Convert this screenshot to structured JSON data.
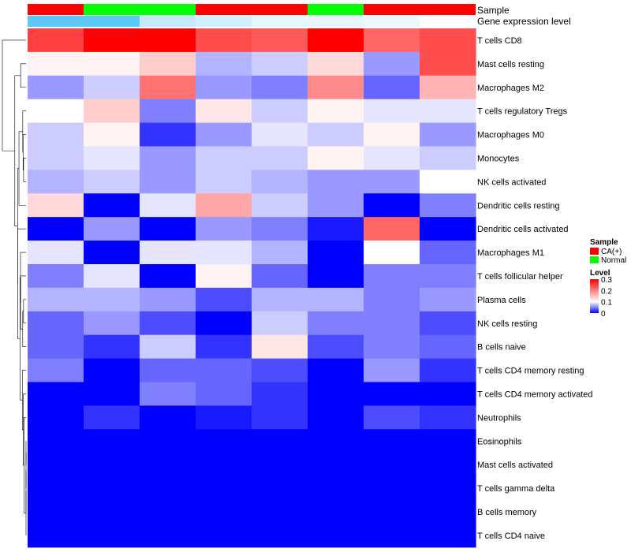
{
  "chart_data": {
    "type": "heatmap",
    "title": "",
    "annotation_labels": {
      "sample": "Sample",
      "expression": "Gene expression level"
    },
    "columns": [
      {
        "sample": "CA(+)",
        "expression": 0.32
      },
      {
        "sample": "Normal",
        "expression": 0.32
      },
      {
        "sample": "Normal",
        "expression": 0.12
      },
      {
        "sample": "CA(+)",
        "expression": 0.09
      },
      {
        "sample": "CA(+)",
        "expression": 0.05
      },
      {
        "sample": "Normal",
        "expression": 0.05
      },
      {
        "sample": "CA(+)",
        "expression": 0.04
      },
      {
        "sample": "CA(+)",
        "expression": 0.0
      }
    ],
    "rows": [
      "T cells CD8",
      "Mast cells resting",
      "Macrophages M2",
      "T cells regulatory  Tregs",
      "Macrophages M0",
      "Monocytes",
      "NK cells activated",
      "Dendritic cells resting",
      "Dendritic cells activated",
      "Macrophages M1",
      "T cells follicular helper",
      "Plasma cells",
      "NK cells resting",
      "B cells naive",
      "T cells CD4 memory resting",
      "T cells CD4 memory activated",
      "Neutrophils",
      "Eosinophils",
      "Mast cells activated",
      "T cells gamma delta",
      "B cells memory",
      "T cells CD4 naive"
    ],
    "values": [
      [
        0.25,
        0.3,
        0.3,
        0.24,
        0.23,
        0.3,
        0.22,
        0.24
      ],
      [
        0.11,
        0.11,
        0.14,
        0.07,
        0.08,
        0.13,
        0.06,
        0.24
      ],
      [
        0.06,
        0.08,
        0.21,
        0.06,
        0.05,
        0.19,
        0.04,
        0.16
      ],
      [
        0.1,
        0.14,
        0.05,
        0.12,
        0.08,
        0.11,
        0.09,
        0.09
      ],
      [
        0.08,
        0.11,
        0.02,
        0.06,
        0.09,
        0.08,
        0.11,
        0.06
      ],
      [
        0.08,
        0.09,
        0.06,
        0.08,
        0.08,
        0.11,
        0.09,
        0.08
      ],
      [
        0.07,
        0.08,
        0.06,
        0.08,
        0.07,
        0.06,
        0.06,
        0.1
      ],
      [
        0.13,
        0.0,
        0.09,
        0.17,
        0.08,
        0.06,
        0.0,
        0.05
      ],
      [
        0.0,
        0.06,
        0.0,
        0.06,
        0.05,
        0.01,
        0.22,
        0.0
      ],
      [
        0.09,
        0.0,
        0.09,
        0.09,
        0.07,
        0.0,
        0.1,
        0.04
      ],
      [
        0.05,
        0.09,
        0.0,
        0.11,
        0.04,
        0.0,
        0.05,
        0.05
      ],
      [
        0.07,
        0.07,
        0.06,
        0.03,
        0.07,
        0.07,
        0.05,
        0.06
      ],
      [
        0.04,
        0.06,
        0.03,
        0.0,
        0.08,
        0.05,
        0.05,
        0.03
      ],
      [
        0.04,
        0.02,
        0.08,
        0.02,
        0.12,
        0.03,
        0.05,
        0.04
      ],
      [
        0.05,
        0.0,
        0.04,
        0.04,
        0.03,
        0.0,
        0.06,
        0.02
      ],
      [
        0.0,
        0.0,
        0.05,
        0.04,
        0.02,
        0.0,
        0.0,
        0.0
      ],
      [
        0.0,
        0.02,
        0.0,
        0.01,
        0.02,
        0.0,
        0.03,
        0.02
      ],
      [
        0.0,
        0.0,
        0.0,
        0.0,
        0.0,
        0.0,
        0.0,
        0.0
      ],
      [
        0.0,
        0.0,
        0.0,
        0.0,
        0.0,
        0.0,
        0.0,
        0.0
      ],
      [
        0.0,
        0.0,
        0.0,
        0.0,
        0.0,
        0.0,
        0.0,
        0.0
      ],
      [
        0.0,
        0.0,
        0.0,
        0.0,
        0.0,
        0.0,
        0.0,
        0.0
      ],
      [
        0.0,
        0.0,
        0.0,
        0.0,
        0.0,
        0.0,
        0.0,
        0.0
      ]
    ],
    "color_scale": {
      "min": 0,
      "mid": 0.1,
      "max": 0.3,
      "low": "#0000ff",
      "midColor": "#ffffff",
      "high": "#ff0000"
    },
    "sample_colors": {
      "CA(+)": "#ff0000",
      "Normal": "#00ff00"
    },
    "expression_scale": {
      "low": "#ffffff",
      "high": "#5bc8f5"
    },
    "legend": {
      "sample_title": "Sample",
      "sample_entries": [
        "CA(+)",
        "Normal"
      ],
      "level_title": "Level",
      "level_ticks": [
        {
          "label": "0.3",
          "value": 0.3
        },
        {
          "label": "0.2",
          "value": 0.2
        },
        {
          "label": "0.1",
          "value": 0.1
        },
        {
          "label": "0",
          "value": 0
        }
      ]
    }
  }
}
